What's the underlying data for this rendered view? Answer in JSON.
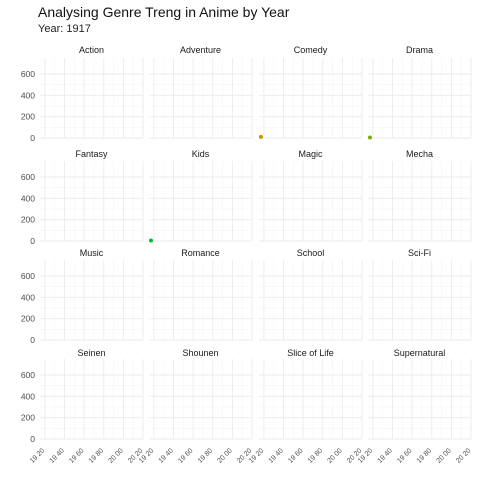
{
  "chart_data": {
    "type": "scatter",
    "title": "Analysing Genre Treng in Anime by Year",
    "subtitle": "Year: 1917",
    "xlabel": "",
    "ylabel": "",
    "xlim": [
      1915,
      2020
    ],
    "ylim": [
      0,
      750
    ],
    "x_ticks": [
      1920,
      1940,
      1960,
      1980,
      2000,
      2020
    ],
    "x_tick_labels": [
      "19 20",
      "19 40",
      "19 60",
      "19 80",
      "20 00",
      "20 20"
    ],
    "y_ticks": [
      0,
      200,
      400,
      600
    ],
    "y_tick_labels": [
      "0",
      "200",
      "400",
      "600"
    ],
    "grid": true,
    "facets": [
      {
        "name": "Action",
        "points": []
      },
      {
        "name": "Adventure",
        "points": []
      },
      {
        "name": "Comedy",
        "points": [
          {
            "x": 1917,
            "y": 10,
            "color": "#c49a00"
          }
        ]
      },
      {
        "name": "Drama",
        "points": [
          {
            "x": 1917,
            "y": 5,
            "color": "#7cae00"
          }
        ]
      },
      {
        "name": "Fantasy",
        "points": []
      },
      {
        "name": "Kids",
        "points": [
          {
            "x": 1917,
            "y": 5,
            "color": "#00ba38"
          }
        ]
      },
      {
        "name": "Magic",
        "points": []
      },
      {
        "name": "Mecha",
        "points": []
      },
      {
        "name": "Music",
        "points": []
      },
      {
        "name": "Romance",
        "points": []
      },
      {
        "name": "School",
        "points": []
      },
      {
        "name": "Sci-Fi",
        "points": []
      },
      {
        "name": "Seinen",
        "points": []
      },
      {
        "name": "Shounen",
        "points": []
      },
      {
        "name": "Slice of Life",
        "points": []
      },
      {
        "name": "Supernatural",
        "points": []
      }
    ],
    "colors": {
      "grid_major": "#ebebeb",
      "grid_minor": "#f5f5f5"
    }
  }
}
